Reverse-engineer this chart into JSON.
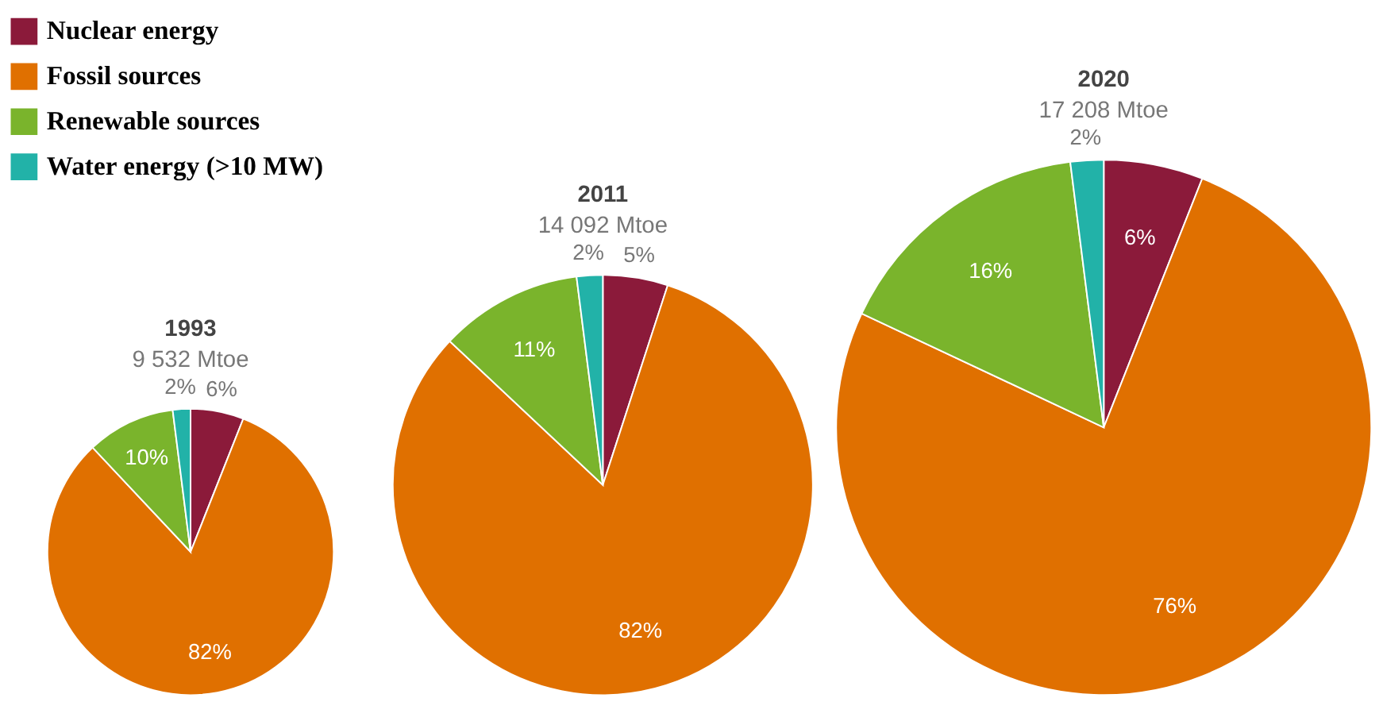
{
  "chart_data": [
    {
      "type": "pie",
      "title": "1993",
      "subtitle": "9 532 Mtoe",
      "categories": [
        "Nuclear energy",
        "Fossil sources",
        "Renewable sources",
        "Water energy (>10 MW)"
      ],
      "values": [
        6,
        82,
        10,
        2
      ],
      "colors": [
        "#8b1a3a",
        "#e07000",
        "#7ab42c",
        "#22b2a8"
      ],
      "value_labels": [
        "6%",
        "82%",
        "10%",
        "2%"
      ],
      "legend": "top left"
    },
    {
      "type": "pie",
      "title": "2011",
      "subtitle": "14 092 Mtoe",
      "categories": [
        null,
        null,
        null,
        null
      ],
      "values": [
        5,
        82,
        11,
        2
      ],
      "colors": [
        "#8b1a3a",
        "#e07000",
        "#7ab42c",
        "#22b2a8"
      ],
      "value_labels": [
        "5%",
        "82%",
        "11%",
        "2%"
      ]
    },
    {
      "type": "pie",
      "title": "2020",
      "subtitle": "17 208 Mtoe",
      "categories": [
        null,
        null,
        null,
        null
      ],
      "values": [
        6,
        76,
        16,
        2
      ],
      "colors": [
        "#8b1a3a",
        "#e07000",
        "#7ab42c",
        "#22b2a8"
      ],
      "value_labels": [
        "6%",
        "76%",
        "16%",
        "2%"
      ]
    }
  ]
}
